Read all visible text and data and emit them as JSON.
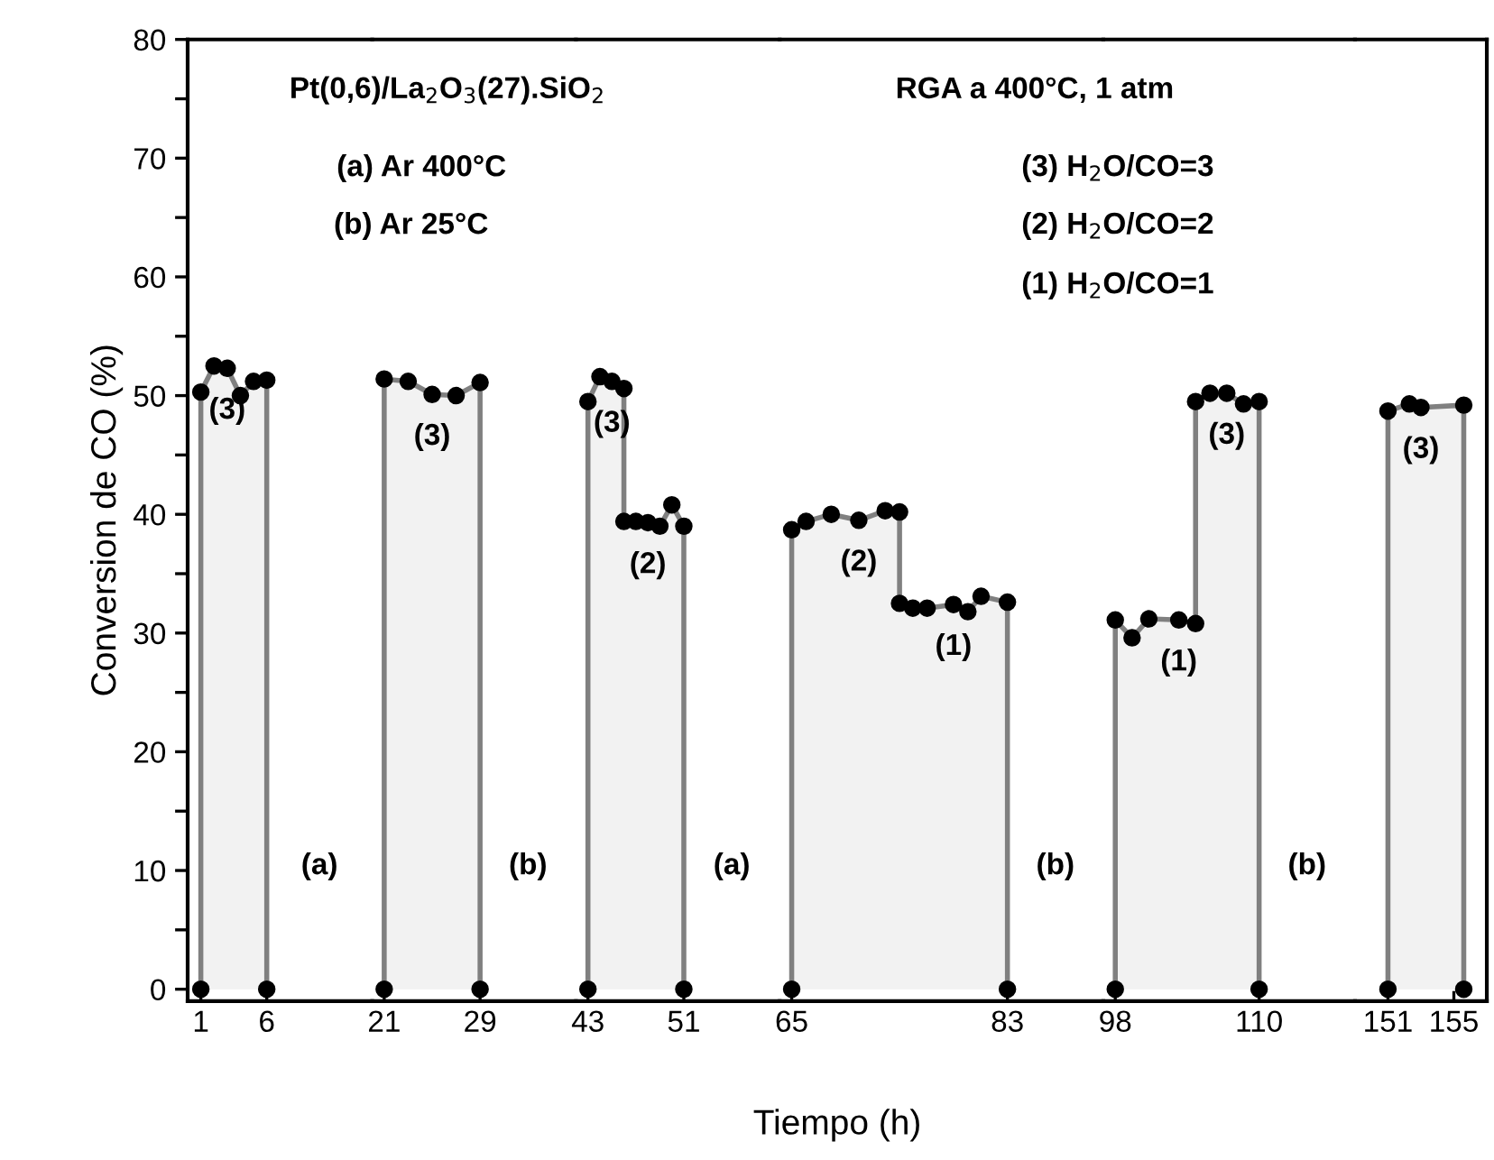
{
  "chart_data": [
    {
      "type": "area",
      "ylabel": "Conversion de CO (%)",
      "xlim": [
        0,
        14
      ],
      "ylim": [
        -1,
        80
      ],
      "xticks": [
        1,
        6
      ],
      "yticks": [
        0,
        {
          "value": 5,
          "label": null
        },
        10,
        {
          "value": 15,
          "label": null
        },
        20,
        {
          "value": 25,
          "label": null
        },
        30,
        {
          "value": 35,
          "label": null
        },
        40,
        {
          "value": 45,
          "label": null
        },
        50,
        {
          "value": 55,
          "label": null
        },
        60,
        {
          "value": 65,
          "label": null
        },
        70,
        {
          "value": 75,
          "label": null
        },
        80
      ],
      "marker": "circle",
      "line_style": "solid",
      "series": [
        {
          "color": "#f2f2f2",
          "x": [
            1,
            1,
            2,
            3,
            4,
            5,
            6,
            6
          ],
          "values": [
            0,
            50.3,
            52.5,
            52.3,
            50.0,
            51.2,
            51.3,
            0
          ]
        }
      ],
      "annotations": [
        "Pt(0,6)/La$_{2}$O$_{3}$(27).SiO$_{2}$",
        "RGA a 400°C, 1 atm",
        "(a) Ar 400°C",
        "(b) Ar 25°C",
        "(3) H$_{2}$O/CO=3",
        "(2) H$_{2}$O/CO=2",
        "(1) H$_{2}$O/CO=1",
        "(a)",
        {
          "text": "(3)",
          "x": 3,
          "y": 52.3
        }
      ]
    },
    {
      "type": "area",
      "xlim": [
        20,
        37
      ],
      "ylim": [
        -1,
        80
      ],
      "xticks": [
        21,
        29
      ],
      "tick_labels": "x",
      "marker": "circle",
      "line_style": "solid",
      "series": [
        {
          "color": "#f2f2f2",
          "x": [
            21,
            21,
            23,
            25,
            27,
            29,
            29
          ],
          "values": [
            0,
            51.4,
            51.2,
            50.1,
            50.0,
            51.1,
            0
          ]
        }
      ],
      "annotations": [
        "(b)",
        {
          "text": "(3)",
          "x": 25,
          "y": 50.1
        }
      ]
    },
    {
      "type": "area",
      "xlim": [
        42,
        59
      ],
      "ylim": [
        -1,
        80
      ],
      "xticks": [
        43,
        51
      ],
      "tick_labels": "x",
      "marker": "circle",
      "line_style": "solid",
      "series": [
        {
          "color": "#f2f2f2",
          "x": [
            43,
            43,
            44,
            45,
            46,
            46,
            47,
            48,
            49,
            50,
            51,
            51
          ],
          "values": [
            0,
            49.5,
            51.6,
            51.2,
            50.6,
            39.4,
            39.4,
            39.3,
            39.0,
            40.8,
            39.0,
            0
          ]
        }
      ],
      "annotations": [
        "(a)",
        {
          "text": "(3)",
          "x": 45,
          "y": 51.2
        },
        {
          "text": "(2)",
          "x": 48,
          "y": 39.3
        }
      ]
    },
    {
      "type": "area",
      "xlabel": "Tiempo (h)",
      "xlim": [
        64,
        91
      ],
      "ylim": [
        -1,
        80
      ],
      "xticks": [
        65,
        83
      ],
      "tick_labels": "x",
      "marker": "circle",
      "line_style": "solid",
      "series": [
        {
          "color": "#f2f2f2",
          "x": [
            65,
            65,
            66.2,
            68.3,
            70.6,
            72.8,
            74,
            74,
            75.1,
            76.3,
            78.5,
            79.7,
            80.8,
            83,
            83
          ],
          "values": [
            0,
            38.7,
            39.4,
            40.0,
            39.5,
            40.3,
            40.2,
            32.5,
            32.1,
            32.1,
            32.4,
            31.8,
            33.1,
            32.6,
            0
          ]
        }
      ],
      "annotations": [
        "(b)",
        {
          "text": "(2)",
          "x": 70.6,
          "y": 39.5
        },
        {
          "text": "(1)",
          "x": 78.5,
          "y": 32.4
        }
      ]
    },
    {
      "type": "area",
      "xlim": [
        97,
        118
      ],
      "ylim": [
        -1,
        80
      ],
      "xticks": [
        98,
        110
      ],
      "tick_labels": "x",
      "marker": "circle",
      "line_style": "solid",
      "series": [
        {
          "color": "#f2f2f2",
          "x": [
            98,
            98,
            99.4,
            100.8,
            103.3,
            104.7,
            104.7,
            105.9,
            107.3,
            108.7,
            110,
            110
          ],
          "values": [
            0,
            31.1,
            29.6,
            31.2,
            31.1,
            30.8,
            49.5,
            50.2,
            50.2,
            49.3,
            49.5,
            0
          ]
        }
      ],
      "annotations": [
        "(b)",
        {
          "text": "(1)",
          "x": 103.3,
          "y": 31.1
        },
        {
          "text": "(3)",
          "x": 107.3,
          "y": 50.2
        }
      ]
    },
    {
      "type": "area",
      "xlim": [
        149,
        157
      ],
      "ylim": [
        -1,
        80
      ],
      "xticks": [
        151,
        155
      ],
      "tick_labels": "x",
      "marker": "circle",
      "line_style": "solid",
      "series": [
        {
          "color": "#f2f2f2",
          "x": [
            151,
            151,
            152.3,
            153,
            155.6,
            155.6
          ],
          "values": [
            0,
            48.7,
            49.3,
            49.0,
            49.2,
            0
          ]
        }
      ],
      "annotations": [
        {
          "text": "(3)",
          "x": 153,
          "y": 49.0
        }
      ]
    }
  ]
}
